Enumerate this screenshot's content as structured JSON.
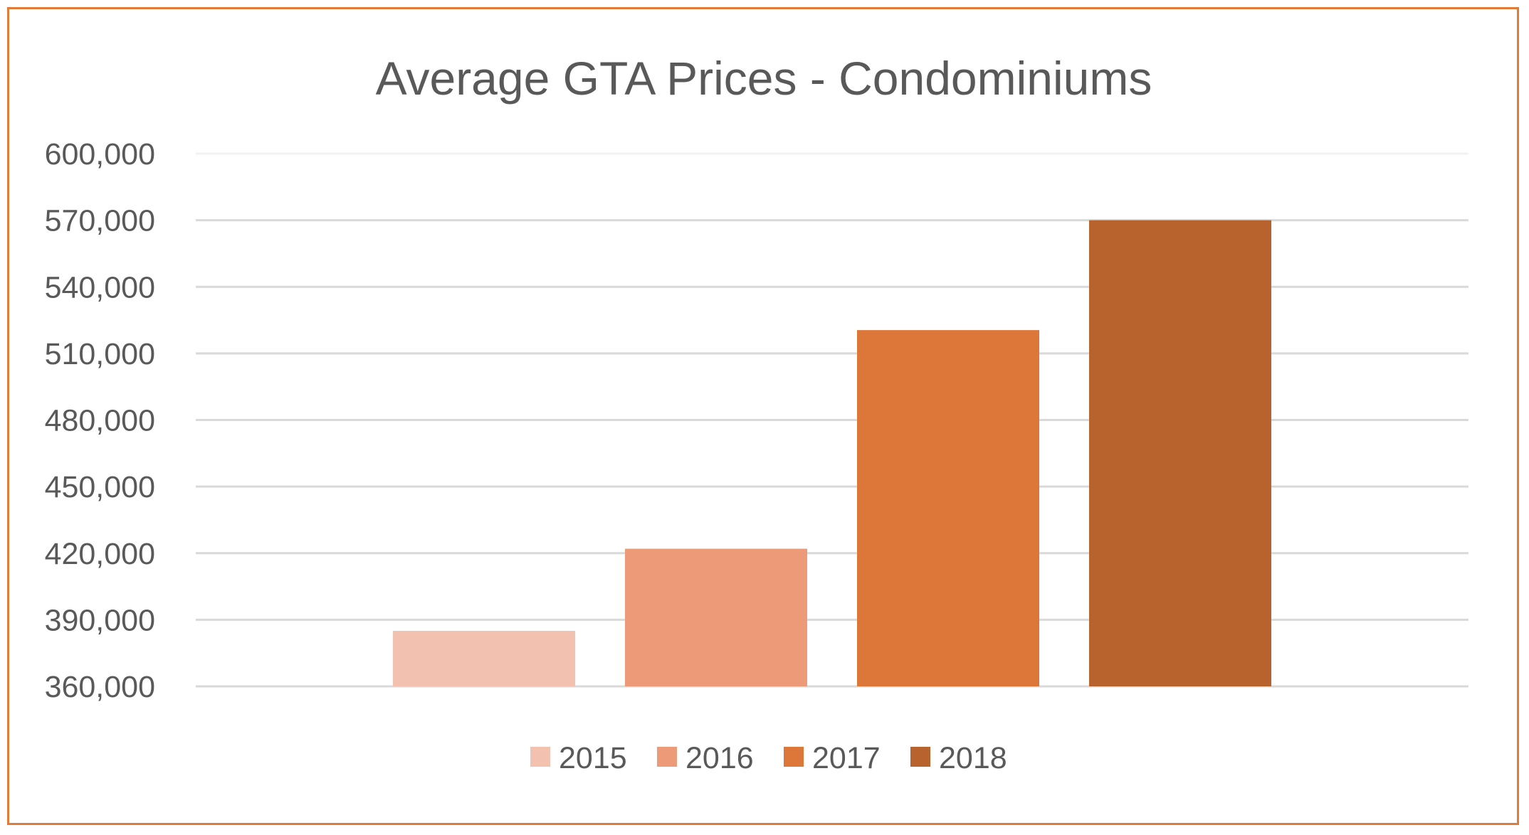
{
  "chart_data": {
    "type": "bar",
    "title": "Average GTA Prices - Condominiums",
    "xlabel": "",
    "ylabel": "",
    "ylim": [
      360000,
      600000
    ],
    "yticks": [
      360000,
      390000,
      420000,
      450000,
      480000,
      510000,
      540000,
      570000,
      600000
    ],
    "ytick_labels": [
      "360,000",
      "390,000",
      "420,000",
      "450,000",
      "480,000",
      "510,000",
      "540,000",
      "570,000",
      "600,000"
    ],
    "grid": true,
    "legend_position": "bottom",
    "series": [
      {
        "name": "2015",
        "values": [
          385000
        ],
        "color": "#f3c1b0"
      },
      {
        "name": "2016",
        "values": [
          422000
        ],
        "color": "#ec9a78"
      },
      {
        "name": "2017",
        "values": [
          520500
        ],
        "color": "#dd7739"
      },
      {
        "name": "2018",
        "values": [
          570000
        ],
        "color": "#b8622d"
      }
    ],
    "categories": [
      ""
    ]
  },
  "colors": {
    "border": "#e07b3c",
    "grid": "#d9d9d9",
    "text": "#595959"
  }
}
